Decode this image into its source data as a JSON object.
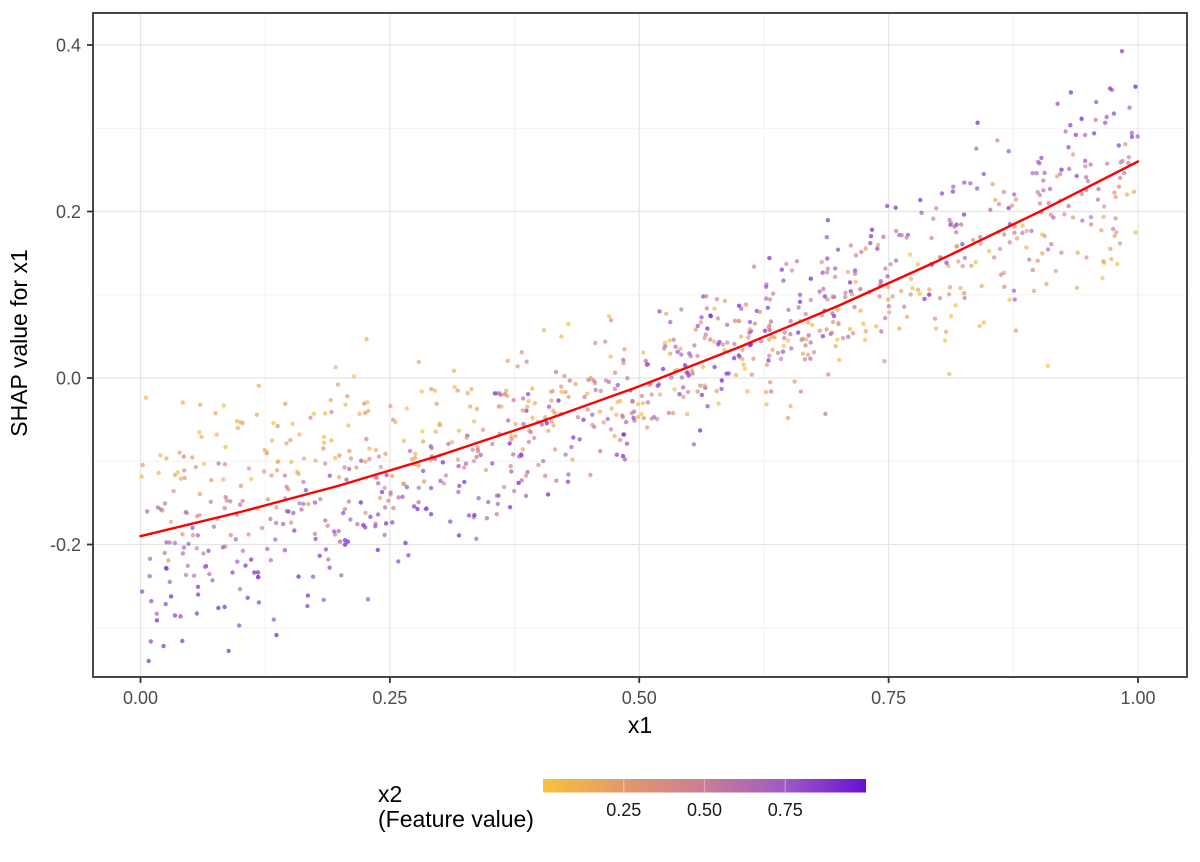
{
  "chart_data": {
    "type": "scatter",
    "title": "",
    "xlabel": "x1",
    "ylabel": "SHAP value for x1",
    "x_ticks": [
      0.0,
      0.25,
      0.5,
      0.75,
      1.0
    ],
    "x_tick_labels": [
      "0.00",
      "0.25",
      "0.50",
      "0.75",
      "1.00"
    ],
    "y_ticks": [
      -0.2,
      0.0,
      0.2,
      0.4
    ],
    "y_tick_labels": [
      "-0.2",
      "0.0",
      "0.2",
      "0.4"
    ],
    "x_minor_ticks": [
      0.125,
      0.375,
      0.625,
      0.875
    ],
    "y_minor_ticks": [
      -0.3,
      -0.1,
      0.1,
      0.3
    ],
    "xlim": [
      -0.05,
      1.05
    ],
    "ylim": [
      -0.359,
      0.438
    ],
    "grid": "major-and-minor",
    "legend_position": "bottom",
    "smooth_line": {
      "color": "#FF0000",
      "width": 2.4,
      "points": [
        [
          0.0,
          -0.19
        ],
        [
          0.1,
          -0.161
        ],
        [
          0.2,
          -0.129
        ],
        [
          0.3,
          -0.093
        ],
        [
          0.4,
          -0.053
        ],
        [
          0.5,
          -0.01
        ],
        [
          0.6,
          0.037
        ],
        [
          0.7,
          0.087
        ],
        [
          0.75,
          0.114
        ],
        [
          0.8,
          0.141
        ],
        [
          0.9,
          0.199
        ],
        [
          1.0,
          0.26
        ]
      ]
    },
    "scatter": {
      "n": 1000,
      "seed": 42,
      "x_distribution": "uniform(0,1)",
      "color_feature": "x2 ~ uniform(0,1)",
      "y_model": "y = -0.19 + 0.27*x1 + 0.18*x1^2 + 0.46*(x1-0.53)*(x2-0.5) + normal(0,0.04)",
      "model_params": {
        "a": -0.19,
        "b": 0.27,
        "c2": 0.18,
        "interaction": 0.46,
        "pivot": 0.53,
        "noise_sd": 0.04
      },
      "y_clamp": [
        -0.34,
        0.41
      ],
      "point_radius": 2.2,
      "point_opacity": 0.68
    },
    "color_scale": {
      "stops": [
        {
          "at": 0.0,
          "color": "#F6C33C"
        },
        {
          "at": 0.25,
          "color": "#E29A6A"
        },
        {
          "at": 0.5,
          "color": "#C97D95"
        },
        {
          "at": 0.75,
          "color": "#9E5BC3"
        },
        {
          "at": 1.0,
          "color": "#6A0FD6"
        }
      ],
      "bar_ticks": [
        0.25,
        0.5,
        0.75
      ],
      "bar_tick_labels": [
        "0.25",
        "0.50",
        "0.75"
      ]
    }
  },
  "legend": {
    "title_line1": "x2",
    "title_line2": "(Feature value)"
  },
  "axes": {
    "x_title": "x1",
    "y_title": "SHAP value for x1"
  },
  "style": {
    "panel_border": "#333333",
    "grid_major": "#E5E5E5",
    "grid_minor": "#F2F2F2",
    "tick_color": "#333333",
    "tick_label_color": "#4D4D4D",
    "title_color": "#000000"
  }
}
